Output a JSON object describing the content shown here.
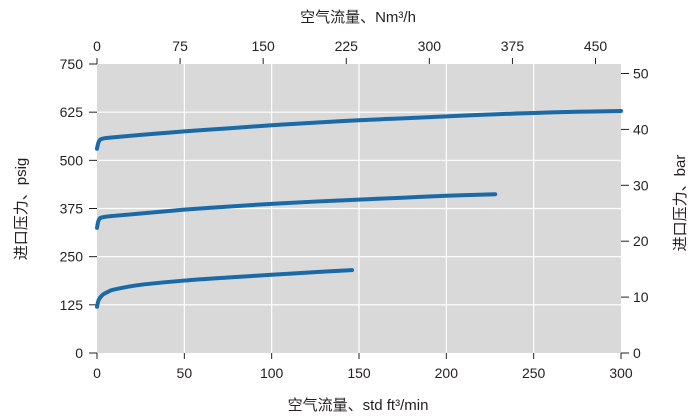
{
  "colors": {
    "page_bg": "#ffffff",
    "plot_bg": "#d9d9d9",
    "grid": "#ffffff",
    "line": "#1b6aa8",
    "text": "#231f20",
    "tick": "#231f20"
  },
  "chart_data": {
    "type": "line",
    "title": "",
    "xlabel": "空气流量、std ft³/min",
    "ylabel": "进口压力、psig",
    "x2label": "空气流量、Nm³/h",
    "y2label": "进口压力、bar",
    "xlim": [
      0,
      300
    ],
    "ylim": [
      0,
      750
    ],
    "x2lim": [
      0,
      473
    ],
    "y2lim": [
      0,
      51.7
    ],
    "xticks": [
      0,
      50,
      100,
      150,
      200,
      250,
      300
    ],
    "yticks": [
      0,
      125,
      250,
      375,
      500,
      625,
      750
    ],
    "x2ticks": [
      0,
      75,
      150,
      225,
      300,
      375,
      450
    ],
    "y2ticks": [
      0,
      10,
      20,
      30,
      40,
      50
    ],
    "grid": true,
    "legend": "none",
    "series": [
      {
        "x": [
          0,
          1,
          3,
          10,
          25,
          50,
          75,
          100,
          125,
          150,
          175,
          200,
          225,
          250,
          275,
          300
        ],
        "y": [
          530,
          548,
          556,
          560,
          566,
          575,
          583,
          591,
          598,
          604,
          609,
          614,
          619,
          623,
          626,
          628
        ]
      },
      {
        "x": [
          0,
          1,
          3,
          10,
          25,
          50,
          75,
          100,
          125,
          150,
          175,
          200,
          228
        ],
        "y": [
          325,
          345,
          352,
          356,
          362,
          372,
          380,
          387,
          393,
          398,
          403,
          408,
          412
        ]
      },
      {
        "x": [
          0,
          1,
          3,
          6,
          10,
          25,
          50,
          75,
          100,
          125,
          146
        ],
        "y": [
          120,
          138,
          150,
          158,
          165,
          177,
          188,
          196,
          203,
          210,
          215
        ]
      }
    ]
  }
}
